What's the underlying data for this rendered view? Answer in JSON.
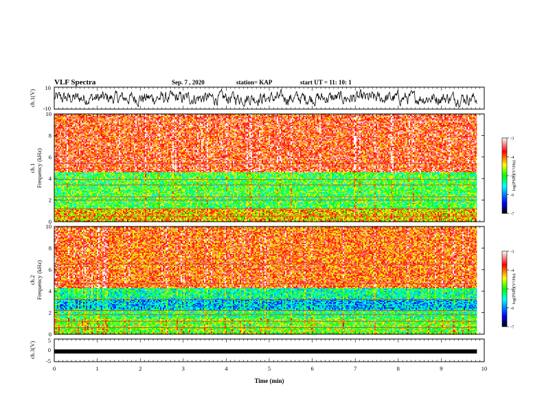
{
  "header": {
    "title": "VLF Spectra",
    "date": "Sep. 7 , 2020",
    "station": "station= KAP",
    "start": "start UT = 11: 10: 1"
  },
  "colorbar": {
    "label": "log(PSD)(V²/Hz)",
    "ticks": [
      "-3",
      "-4",
      "-5",
      "-6",
      "-7"
    ],
    "range": [
      -7,
      -3
    ],
    "colors": [
      "#000000",
      "#0000ff",
      "#00ffff",
      "#00ff00",
      "#ffff00",
      "#ff0000",
      "#ffffff"
    ]
  },
  "chart_data": [
    {
      "type": "line",
      "name": "waveform-ch1",
      "ylabel": "ch.1(V)",
      "ylim": [
        -10,
        10
      ],
      "y_ticks": [
        "10",
        "-10"
      ],
      "xlim": [
        0,
        10
      ],
      "description_values": "noisy waveform oscillating roughly between -6 and +6 V"
    },
    {
      "type": "heatmap",
      "name": "spectrogram-ch1",
      "ylabel": "ch.1\nFrequency (kHz)",
      "ylim": [
        0,
        10
      ],
      "y_ticks": [
        "0",
        "2",
        "4",
        "6",
        "8",
        "10"
      ],
      "xlim": [
        0,
        10
      ],
      "bands": [
        {
          "f_from": 0,
          "f_to": 1.3,
          "level": -4.3
        },
        {
          "f_from": 1.3,
          "f_to": 4.6,
          "level": -5.0
        },
        {
          "f_from": 4.6,
          "f_to": 10,
          "level": -3.7
        }
      ],
      "lines_khz": [
        0.5,
        1.2,
        2.0,
        2.3,
        3.4,
        3.9,
        5.4
      ]
    },
    {
      "type": "heatmap",
      "name": "spectrogram-ch2",
      "ylabel": "ch.2\nFrequency (kHz)",
      "ylim": [
        0,
        10
      ],
      "y_ticks": [
        "0",
        "2",
        "4",
        "6",
        "8",
        "10"
      ],
      "xlim": [
        0,
        10
      ],
      "bands": [
        {
          "f_from": 0,
          "f_to": 1.5,
          "level": -4.8
        },
        {
          "f_from": 1.5,
          "f_to": 2.3,
          "level": -5.2
        },
        {
          "f_from": 2.3,
          "f_to": 3.3,
          "level": -5.8
        },
        {
          "f_from": 3.3,
          "f_to": 4.3,
          "level": -5.3
        },
        {
          "f_from": 4.3,
          "f_to": 10,
          "level": -3.9
        }
      ],
      "lines_khz": [
        0.6,
        1.2,
        1.8,
        2.2,
        3.2,
        4.7,
        6.5
      ]
    },
    {
      "type": "line",
      "name": "waveform-ch3",
      "ylabel": "ch.3(V)",
      "ylim": [
        -5,
        5
      ],
      "y_ticks": [
        "5",
        "0",
        "-5"
      ],
      "xlim": [
        0,
        10
      ],
      "values": [
        {
          "x": 0,
          "y": -0.5
        },
        {
          "x": 9.83,
          "y": -0.5
        }
      ]
    }
  ],
  "x_axis": {
    "label": "Time (min)",
    "ticks": [
      "0",
      "1",
      "2",
      "3",
      "4",
      "5",
      "6",
      "7",
      "8",
      "9",
      "10"
    ],
    "data_end_min": 9.83
  }
}
